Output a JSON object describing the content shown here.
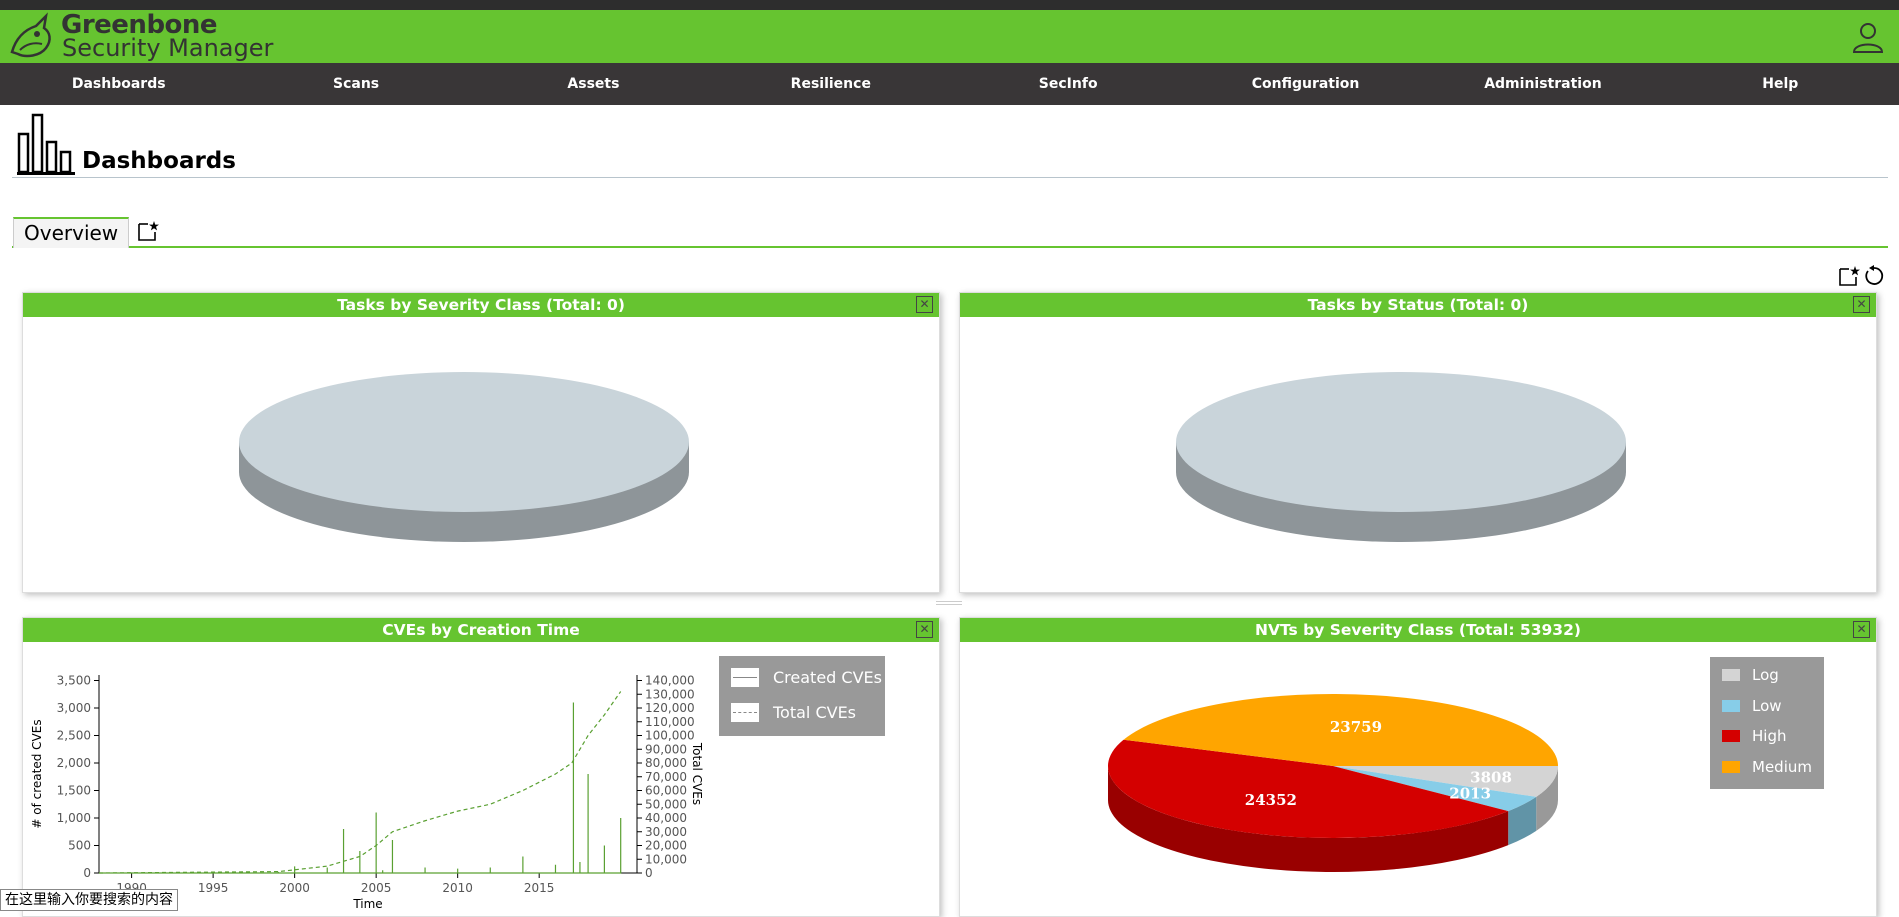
{
  "app": {
    "name_line1": "Greenbone",
    "name_line2": "Security Manager"
  },
  "colors": {
    "brand": "#66c430",
    "menubar": "#393637"
  },
  "menu": [
    "Dashboards",
    "Scans",
    "Assets",
    "Resilience",
    "SecInfo",
    "Configuration",
    "Administration",
    "Help"
  ],
  "page": {
    "title": "Dashboards"
  },
  "tabs": {
    "active": "Overview"
  },
  "panels": {
    "tasks_severity": {
      "title": "Tasks by Severity Class (Total: 0)"
    },
    "tasks_status": {
      "title": "Tasks by Status (Total: 0)"
    },
    "cves_time": {
      "title": "CVEs by Creation Time"
    },
    "nvts_severity": {
      "title": "NVTs by Severity Class (Total: 53932)"
    }
  },
  "status_tip": "在这里输入你要搜索的内容",
  "chart_data": [
    {
      "type": "pie",
      "title": "Tasks by Severity Class (Total: 0)",
      "categories": [],
      "values": []
    },
    {
      "type": "pie",
      "title": "Tasks by Status (Total: 0)",
      "categories": [],
      "values": []
    },
    {
      "type": "line",
      "title": "CVEs by Creation Time",
      "xlabel": "Time",
      "ylabel": "# of created CVEs",
      "y2label": "Total CVEs",
      "xlim": [
        1988,
        2021
      ],
      "ylim": [
        0,
        3600
      ],
      "y2lim": [
        0,
        144000
      ],
      "x_ticks": [
        1990,
        1995,
        2000,
        2005,
        2010,
        2015
      ],
      "y_ticks": [
        "0",
        "500",
        "1,000",
        "1,500",
        "2,000",
        "2,500",
        "3,000",
        "3,500"
      ],
      "y2_ticks": [
        "0",
        "10,000",
        "20,000",
        "30,000",
        "40,000",
        "50,000",
        "60,000",
        "70,000",
        "80,000",
        "90,000",
        "100,000",
        "110,000",
        "120,000",
        "130,000",
        "140,000"
      ],
      "legend": [
        "Created CVEs",
        "Total CVEs"
      ],
      "legend_position": "top-right",
      "series": [
        {
          "name": "Created CVEs",
          "x": [
            1988,
            1999,
            2000,
            2002,
            2003,
            2004,
            2005,
            2005.4,
            2006,
            2008,
            2010,
            2012,
            2014,
            2016,
            2017.1,
            2017.5,
            2018,
            2019,
            2020
          ],
          "values": [
            0,
            20,
            120,
            100,
            800,
            400,
            1100,
            50,
            600,
            100,
            80,
            100,
            300,
            150,
            3100,
            200,
            1800,
            500,
            1000
          ]
        },
        {
          "name": "Total CVEs",
          "x": [
            1988,
            1999,
            2002,
            2004,
            2005,
            2006,
            2008,
            2010,
            2012,
            2014,
            2016,
            2017,
            2018,
            2019,
            2020
          ],
          "values": [
            0,
            1000,
            5000,
            12000,
            20000,
            30000,
            38000,
            45000,
            50000,
            60000,
            72000,
            80000,
            100000,
            115000,
            132000
          ]
        }
      ]
    },
    {
      "type": "pie",
      "title": "NVTs by Severity Class (Total: 53932)",
      "categories": [
        "Log",
        "Low",
        "High",
        "Medium"
      ],
      "values": [
        3808,
        2013,
        24352,
        23759
      ],
      "colors": [
        "#d4d4d4",
        "#87cde8",
        "#d40000",
        "#ffa500"
      ],
      "legend_position": "top-right"
    }
  ]
}
